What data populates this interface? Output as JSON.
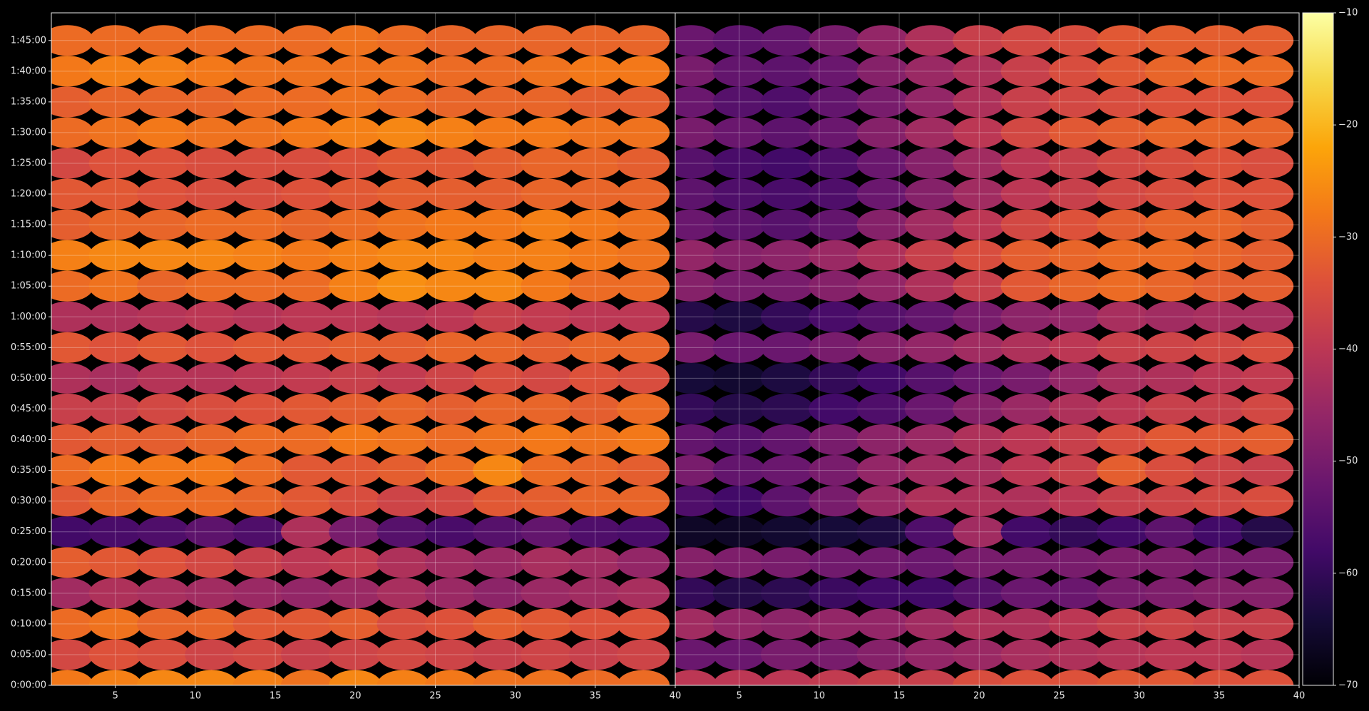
{
  "chart_data": [
    {
      "type": "heatmap",
      "x": [
        2,
        5,
        8,
        11,
        14,
        17,
        20,
        23,
        26,
        29,
        32,
        35,
        38
      ],
      "y": [
        0,
        300,
        600,
        900,
        1200,
        1500,
        1800,
        2100,
        2400,
        2700,
        3000,
        3300,
        3600,
        3900,
        4200,
        4500,
        4800,
        5100,
        5400,
        5700,
        6000,
        6300
      ],
      "z": [
        [
          -28,
          -27,
          -26,
          -26,
          -27,
          -29,
          -26,
          -27,
          -28,
          -29,
          -29,
          -30,
          -30
        ],
        [
          -36,
          -34,
          -35,
          -37,
          -36,
          -38,
          -37,
          -36,
          -37,
          -38,
          -37,
          -38,
          -37
        ],
        [
          -30,
          -29,
          -31,
          -31,
          -33,
          -33,
          -32,
          -35,
          -34,
          -32,
          -33,
          -34,
          -34
        ],
        [
          -44,
          -42,
          -43,
          -44,
          -45,
          -46,
          -45,
          -43,
          -45,
          -47,
          -45,
          -44,
          -43
        ],
        [
          -32,
          -33,
          -34,
          -36,
          -38,
          -40,
          -39,
          -42,
          -44,
          -45,
          -43,
          -44,
          -46
        ],
        [
          -58,
          -57,
          -56,
          -54,
          -56,
          -42,
          -50,
          -55,
          -57,
          -55,
          -53,
          -56,
          -57
        ],
        [
          -33,
          -31,
          -30,
          -30,
          -31,
          -33,
          -35,
          -37,
          -36,
          -33,
          -32,
          -31,
          -31
        ],
        [
          -30,
          -28,
          -28,
          -28,
          -30,
          -33,
          -33,
          -32,
          -30,
          -26,
          -30,
          -31,
          -32
        ],
        [
          -33,
          -32,
          -32,
          -31,
          -30,
          -30,
          -28,
          -29,
          -30,
          -29,
          -28,
          -29,
          -28
        ],
        [
          -38,
          -38,
          -36,
          -35,
          -34,
          -33,
          -32,
          -31,
          -32,
          -31,
          -31,
          -32,
          -30
        ],
        [
          -42,
          -43,
          -41,
          -41,
          -40,
          -39,
          -38,
          -39,
          -37,
          -35,
          -36,
          -34,
          -35
        ],
        [
          -33,
          -34,
          -33,
          -34,
          -33,
          -33,
          -32,
          -32,
          -31,
          -31,
          -32,
          -31,
          -31
        ],
        [
          -42,
          -42,
          -41,
          -40,
          -41,
          -40,
          -40,
          -41,
          -40,
          -38,
          -39,
          -40,
          -40
        ],
        [
          -30,
          -29,
          -31,
          -30,
          -30,
          -30,
          -27,
          -25,
          -26,
          -26,
          -28,
          -30,
          -30
        ],
        [
          -27,
          -26,
          -26,
          -26,
          -27,
          -28,
          -27,
          -26,
          -26,
          -27,
          -27,
          -28,
          -29
        ],
        [
          -32,
          -31,
          -31,
          -30,
          -30,
          -31,
          -30,
          -29,
          -28,
          -28,
          -27,
          -28,
          -29
        ],
        [
          -33,
          -33,
          -34,
          -35,
          -35,
          -34,
          -33,
          -32,
          -32,
          -32,
          -31,
          -31,
          -31
        ],
        [
          -36,
          -34,
          -34,
          -35,
          -35,
          -35,
          -34,
          -33,
          -33,
          -32,
          -31,
          -31,
          -32
        ],
        [
          -30,
          -29,
          -28,
          -29,
          -29,
          -28,
          -27,
          -26,
          -27,
          -28,
          -28,
          -29,
          -29
        ],
        [
          -32,
          -31,
          -31,
          -31,
          -30,
          -30,
          -29,
          -30,
          -31,
          -31,
          -31,
          -32,
          -32
        ],
        [
          -28,
          -27,
          -27,
          -28,
          -29,
          -29,
          -29,
          -29,
          -30,
          -30,
          -29,
          -28,
          -28
        ],
        [
          -30,
          -30,
          -30,
          -30,
          -30,
          -30,
          -29,
          -30,
          -31,
          -31,
          -31,
          -31,
          -31
        ]
      ],
      "xlim": [
        1,
        40
      ],
      "xticks": [
        5,
        10,
        15,
        20,
        25,
        30,
        35,
        40
      ],
      "ylim": [
        0,
        6570
      ],
      "yticks": [
        {
          "value": 0,
          "label": "0:00:00"
        },
        {
          "value": 300,
          "label": "0:05:00"
        },
        {
          "value": 600,
          "label": "0:10:00"
        },
        {
          "value": 900,
          "label": "0:15:00"
        },
        {
          "value": 1200,
          "label": "0:20:00"
        },
        {
          "value": 1500,
          "label": "0:25:00"
        },
        {
          "value": 1800,
          "label": "0:30:00"
        },
        {
          "value": 2100,
          "label": "0:35:00"
        },
        {
          "value": 2400,
          "label": "0:40:00"
        },
        {
          "value": 2700,
          "label": "0:45:00"
        },
        {
          "value": 3000,
          "label": "0:50:00"
        },
        {
          "value": 3300,
          "label": "0:55:00"
        },
        {
          "value": 3600,
          "label": "1:00:00"
        },
        {
          "value": 3900,
          "label": "1:05:00"
        },
        {
          "value": 4200,
          "label": "1:10:00"
        },
        {
          "value": 4500,
          "label": "1:15:00"
        },
        {
          "value": 4800,
          "label": "1:20:00"
        },
        {
          "value": 5100,
          "label": "1:25:00"
        },
        {
          "value": 5400,
          "label": "1:30:00"
        },
        {
          "value": 5700,
          "label": "1:35:00"
        },
        {
          "value": 6000,
          "label": "1:40:00"
        },
        {
          "value": 6300,
          "label": "1:45:00"
        }
      ],
      "grid": true
    },
    {
      "type": "heatmap",
      "x": [
        2,
        5,
        8,
        11,
        14,
        17,
        20,
        23,
        26,
        29,
        32,
        35,
        38
      ],
      "y": [
        0,
        300,
        600,
        900,
        1200,
        1500,
        1800,
        2100,
        2400,
        2700,
        3000,
        3300,
        3600,
        3900,
        4200,
        4500,
        4800,
        5100,
        5400,
        5700,
        6000,
        6300
      ],
      "z": [
        [
          -40,
          -40,
          -40,
          -39,
          -38,
          -38,
          -35,
          -34,
          -34,
          -33,
          -33,
          -34,
          -34
        ],
        [
          -52,
          -52,
          -50,
          -50,
          -48,
          -46,
          -45,
          -43,
          -42,
          -41,
          -40,
          -40,
          -41
        ],
        [
          -44,
          -46,
          -47,
          -46,
          -46,
          -44,
          -42,
          -42,
          -40,
          -38,
          -37,
          -38,
          -38
        ],
        [
          -60,
          -62,
          -61,
          -59,
          -58,
          -58,
          -55,
          -52,
          -52,
          -50,
          -49,
          -48,
          -48
        ],
        [
          -48,
          -49,
          -50,
          -51,
          -51,
          -52,
          -50,
          -50,
          -50,
          -49,
          -49,
          -50,
          -50
        ],
        [
          -66,
          -66,
          -65,
          -64,
          -63,
          -56,
          -44,
          -58,
          -60,
          -58,
          -54,
          -58,
          -62
        ],
        [
          -56,
          -58,
          -54,
          -50,
          -45,
          -42,
          -42,
          -42,
          -40,
          -38,
          -37,
          -36,
          -35
        ],
        [
          -50,
          -53,
          -52,
          -50,
          -46,
          -44,
          -43,
          -40,
          -38,
          -32,
          -35,
          -37,
          -38
        ],
        [
          -53,
          -55,
          -53,
          -50,
          -47,
          -45,
          -42,
          -40,
          -38,
          -35,
          -33,
          -33,
          -32
        ],
        [
          -60,
          -62,
          -61,
          -58,
          -56,
          -52,
          -48,
          -45,
          -42,
          -40,
          -38,
          -38,
          -36
        ],
        [
          -64,
          -65,
          -63,
          -60,
          -58,
          -55,
          -52,
          -50,
          -46,
          -43,
          -42,
          -40,
          -39
        ],
        [
          -50,
          -52,
          -52,
          -50,
          -48,
          -46,
          -44,
          -42,
          -40,
          -38,
          -37,
          -36,
          -35
        ],
        [
          -62,
          -63,
          -60,
          -57,
          -55,
          -53,
          -50,
          -47,
          -46,
          -43,
          -44,
          -43,
          -43
        ],
        [
          -48,
          -50,
          -50,
          -48,
          -46,
          -42,
          -38,
          -33,
          -31,
          -30,
          -31,
          -32,
          -32
        ],
        [
          -46,
          -48,
          -47,
          -45,
          -42,
          -38,
          -35,
          -32,
          -31,
          -30,
          -30,
          -31,
          -32
        ],
        [
          -52,
          -54,
          -55,
          -53,
          -48,
          -44,
          -40,
          -36,
          -34,
          -32,
          -31,
          -31,
          -32
        ],
        [
          -54,
          -56,
          -57,
          -56,
          -52,
          -48,
          -44,
          -40,
          -38,
          -36,
          -35,
          -34,
          -34
        ],
        [
          -55,
          -57,
          -58,
          -56,
          -52,
          -48,
          -44,
          -40,
          -38,
          -36,
          -35,
          -34,
          -35
        ],
        [
          -50,
          -52,
          -54,
          -52,
          -48,
          -44,
          -40,
          -36,
          -33,
          -32,
          -31,
          -31,
          -31
        ],
        [
          -52,
          -55,
          -56,
          -53,
          -50,
          -46,
          -42,
          -38,
          -36,
          -35,
          -34,
          -34,
          -34
        ],
        [
          -50,
          -53,
          -54,
          -52,
          -48,
          -45,
          -42,
          -38,
          -35,
          -33,
          -31,
          -30,
          -30
        ],
        [
          -52,
          -54,
          -53,
          -50,
          -46,
          -42,
          -38,
          -36,
          -35,
          -33,
          -32,
          -32,
          -32
        ]
      ],
      "xlim": [
        1,
        40
      ],
      "xticks": [
        5,
        10,
        15,
        20,
        25,
        30,
        35,
        40
      ],
      "ylim": [
        0,
        6570
      ],
      "grid": true
    },
    {
      "type": "colorbar",
      "colormap": "inferno",
      "clim": [
        -70,
        -10
      ],
      "cticks": [
        {
          "value": -70,
          "label": "−70"
        },
        {
          "value": -60,
          "label": "−60"
        },
        {
          "value": -50,
          "label": "−50"
        },
        {
          "value": -40,
          "label": "−40"
        },
        {
          "value": -30,
          "label": "−30"
        },
        {
          "value": -20,
          "label": "−20"
        },
        {
          "value": -10,
          "label": "−10"
        }
      ]
    }
  ]
}
